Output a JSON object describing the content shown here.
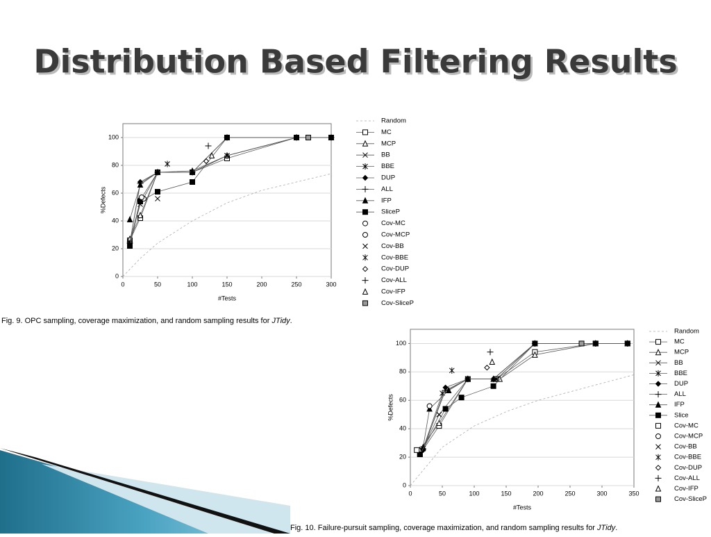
{
  "title": "Distribution Based Filtering Results",
  "chart_data": [
    {
      "type": "line",
      "xlabel": "#Tests",
      "ylabel": "%Defects",
      "xlim": [
        0,
        300
      ],
      "xticks": [
        0,
        50,
        100,
        150,
        200,
        250,
        300
      ],
      "ylim": [
        0,
        110
      ],
      "yticks": [
        0,
        20,
        40,
        60,
        80,
        100
      ],
      "grid": true,
      "caption": [
        {
          "text": "Fig. 9. OPC sampling, coverage maximization, and random sampling results for "
        },
        {
          "text": "JTidy",
          "italic": true
        },
        {
          "text": "."
        }
      ],
      "series": [
        {
          "name": "Random",
          "line": "dashed",
          "marker": "none",
          "color": "#aaaaaa",
          "x": [
            0,
            25,
            50,
            100,
            150,
            200,
            250,
            300
          ],
          "values": [
            0,
            13,
            24,
            40,
            53,
            62,
            68,
            74
          ]
        },
        {
          "name": "MC",
          "line": "solid",
          "marker": "square-open",
          "color": "#555555",
          "x": [
            10,
            25,
            50,
            100,
            150,
            250,
            300
          ],
          "values": [
            26,
            42,
            75,
            75,
            85,
            100,
            100
          ]
        },
        {
          "name": "MCP",
          "line": "solid",
          "marker": "triangle-open",
          "color": "#555555",
          "x": [
            10,
            25,
            50,
            100,
            150,
            250,
            300
          ],
          "values": [
            27,
            44,
            75,
            76,
            87,
            100,
            100
          ]
        },
        {
          "name": "BB",
          "line": "solid",
          "marker": "x",
          "color": "#555555",
          "x": [
            10,
            25,
            50,
            100,
            150,
            250,
            300
          ],
          "values": [
            25,
            52,
            75,
            75,
            87,
            100,
            100
          ]
        },
        {
          "name": "BBE",
          "line": "solid",
          "marker": "asterisk",
          "color": "#555555",
          "x": [
            10,
            25,
            50,
            100,
            150,
            250,
            300
          ],
          "values": [
            24,
            55,
            75,
            75,
            87,
            100,
            100
          ]
        },
        {
          "name": "DUP",
          "line": "solid",
          "marker": "diamond-filled",
          "color": "#555555",
          "x": [
            10,
            25,
            50,
            100,
            150,
            250,
            300
          ],
          "values": [
            24,
            68,
            75,
            75,
            100,
            100,
            100
          ]
        },
        {
          "name": "ALL",
          "line": "solid",
          "marker": "plus",
          "color": "#555555",
          "x": [
            10,
            25,
            50,
            100,
            150,
            250,
            300
          ],
          "values": [
            24,
            67,
            75,
            75,
            100,
            100,
            100
          ]
        },
        {
          "name": "IFP",
          "line": "solid",
          "marker": "triangle-filled",
          "color": "#555555",
          "x": [
            10,
            25,
            50,
            100,
            150,
            250,
            300
          ],
          "values": [
            41,
            66,
            75,
            75,
            100,
            100,
            100
          ]
        },
        {
          "name": "SliceP",
          "line": "solid",
          "marker": "square-filled",
          "color": "#555555",
          "x": [
            10,
            25,
            50,
            100,
            150,
            250,
            300
          ],
          "values": [
            22,
            54,
            61,
            68,
            100,
            100,
            100
          ]
        },
        {
          "name": "Cov-MC",
          "line": "none",
          "marker": "circle-open",
          "color": "#000000",
          "x": [
            30
          ],
          "values": [
            56
          ]
        },
        {
          "name": "Cov-MCP",
          "line": "none",
          "marker": "circle-open",
          "color": "#000000",
          "x": [
            27
          ],
          "values": [
            57
          ]
        },
        {
          "name": "Cov-BB",
          "line": "none",
          "marker": "x",
          "color": "#000000",
          "x": [
            50
          ],
          "values": [
            56
          ]
        },
        {
          "name": "Cov-BBE",
          "line": "none",
          "marker": "asterisk",
          "color": "#000000",
          "x": [
            64
          ],
          "values": [
            81
          ]
        },
        {
          "name": "Cov-DUP",
          "line": "none",
          "marker": "diamond-open",
          "color": "#000000",
          "x": [
            120
          ],
          "values": [
            83
          ]
        },
        {
          "name": "Cov-ALL",
          "line": "none",
          "marker": "plus",
          "color": "#000000",
          "x": [
            123
          ],
          "values": [
            94
          ]
        },
        {
          "name": "Cov-IFP",
          "line": "none",
          "marker": "triangle-open",
          "color": "#000000",
          "x": [
            128
          ],
          "values": [
            87
          ]
        },
        {
          "name": "Cov-SliceP",
          "line": "none",
          "marker": "square-gray",
          "color": "#000000",
          "x": [
            267
          ],
          "values": [
            100
          ]
        }
      ]
    },
    {
      "type": "line",
      "xlabel": "#Tests",
      "ylabel": "%Defects",
      "xlim": [
        0,
        350
      ],
      "xticks": [
        0,
        50,
        100,
        150,
        200,
        250,
        300,
        350
      ],
      "ylim": [
        0,
        110
      ],
      "yticks": [
        0,
        20,
        40,
        60,
        80,
        100
      ],
      "grid": true,
      "caption": [
        {
          "text": "Fig. 10. Failure-pursuit sampling, coverage maximization, and random sampling results for "
        },
        {
          "text": "JTidy",
          "italic": true
        },
        {
          "text": "."
        }
      ],
      "series": [
        {
          "name": "Random",
          "line": "dashed",
          "marker": "none",
          "color": "#aaaaaa",
          "x": [
            0,
            50,
            100,
            150,
            200,
            250,
            300,
            350
          ],
          "values": [
            0,
            27,
            42,
            52,
            60,
            66,
            72,
            78
          ]
        },
        {
          "name": "MC",
          "line": "solid",
          "marker": "square-open",
          "color": "#555555",
          "x": [
            15,
            45,
            90,
            135,
            195,
            290,
            340
          ],
          "values": [
            22,
            42,
            75,
            75,
            94,
            100,
            100
          ]
        },
        {
          "name": "MCP",
          "line": "solid",
          "marker": "triangle-open",
          "color": "#555555",
          "x": [
            15,
            45,
            90,
            140,
            195,
            290,
            340
          ],
          "values": [
            25,
            44,
            75,
            75,
            92,
            100,
            100
          ]
        },
        {
          "name": "BB",
          "line": "solid",
          "marker": "x",
          "color": "#555555",
          "x": [
            20,
            45,
            90,
            135,
            195,
            290,
            340
          ],
          "values": [
            26,
            50,
            75,
            75,
            100,
            100,
            100
          ]
        },
        {
          "name": "BBE",
          "line": "solid",
          "marker": "asterisk",
          "color": "#555555",
          "x": [
            20,
            50,
            90,
            135,
            195,
            290,
            340
          ],
          "values": [
            26,
            65,
            75,
            75,
            100,
            100,
            100
          ]
        },
        {
          "name": "DUP",
          "line": "solid",
          "marker": "diamond-filled",
          "color": "#555555",
          "x": [
            20,
            55,
            90,
            130,
            195,
            290,
            340
          ],
          "values": [
            25,
            69,
            75,
            75,
            100,
            100,
            100
          ]
        },
        {
          "name": "ALL",
          "line": "solid",
          "marker": "plus",
          "color": "#555555",
          "x": [
            20,
            55,
            90,
            130,
            195,
            290,
            340
          ],
          "values": [
            26,
            67,
            75,
            75,
            100,
            100,
            100
          ]
        },
        {
          "name": "IFP",
          "line": "solid",
          "marker": "triangle-filled",
          "color": "#555555",
          "x": [
            20,
            30,
            60,
            90,
            130,
            195,
            290,
            340
          ],
          "values": [
            27,
            54,
            67,
            75,
            75,
            100,
            100,
            100
          ]
        },
        {
          "name": "Slice",
          "line": "solid",
          "marker": "square-filled",
          "color": "#555555",
          "x": [
            15,
            55,
            80,
            130,
            195,
            290,
            340
          ],
          "values": [
            22,
            54,
            62,
            70,
            100,
            100,
            100
          ]
        },
        {
          "name": "Cov-MC",
          "line": "none",
          "marker": "square-open",
          "color": "#000000",
          "x": [
            10
          ],
          "values": [
            25
          ]
        },
        {
          "name": "Cov-MCP",
          "line": "none",
          "marker": "circle-open",
          "color": "#000000",
          "x": [
            30
          ],
          "values": [
            56
          ]
        },
        {
          "name": "Cov-BB",
          "line": "none",
          "marker": "x",
          "color": "#000000",
          "x": [
            45
          ],
          "values": [
            50
          ]
        },
        {
          "name": "Cov-BBE",
          "line": "none",
          "marker": "asterisk",
          "color": "#000000",
          "x": [
            65
          ],
          "values": [
            81
          ]
        },
        {
          "name": "Cov-DUP",
          "line": "none",
          "marker": "diamond-open",
          "color": "#000000",
          "x": [
            120
          ],
          "values": [
            83
          ]
        },
        {
          "name": "Cov-ALL",
          "line": "none",
          "marker": "plus",
          "color": "#000000",
          "x": [
            125
          ],
          "values": [
            94
          ]
        },
        {
          "name": "Cov-IFP",
          "line": "none",
          "marker": "triangle-open",
          "color": "#000000",
          "x": [
            128
          ],
          "values": [
            87
          ]
        },
        {
          "name": "Cov-SliceP",
          "line": "none",
          "marker": "square-gray",
          "color": "#000000",
          "x": [
            268
          ],
          "values": [
            100
          ]
        }
      ]
    }
  ]
}
